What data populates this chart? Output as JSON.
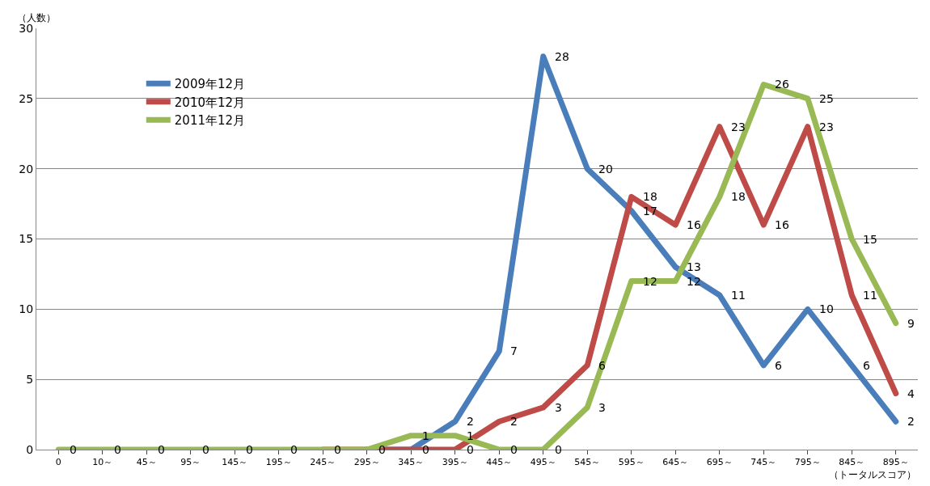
{
  "chart_data": {
    "type": "line",
    "ylabel": "（人数）",
    "xlabel": "（トータルスコア）",
    "categories": [
      "0",
      "10～",
      "45～",
      "95～",
      "145～",
      "195～",
      "245～",
      "295～",
      "345～",
      "395～",
      "445～",
      "495～",
      "545～",
      "595～",
      "645～",
      "695～",
      "745～",
      "795～",
      "845～",
      "895～"
    ],
    "series": [
      {
        "name": "2009年12月",
        "color": "#4a7ebb",
        "values": [
          null,
          null,
          null,
          null,
          null,
          null,
          null,
          0,
          0,
          2,
          7,
          28,
          20,
          17,
          13,
          11,
          6,
          10,
          6,
          2
        ],
        "value_labels": [
          null,
          null,
          null,
          null,
          null,
          null,
          null,
          null,
          null,
          "2",
          "7",
          "28",
          "20",
          "17",
          "13",
          "11",
          "6",
          "10",
          "6",
          "2"
        ]
      },
      {
        "name": "2010年12月",
        "color": "#be4b48",
        "values": [
          null,
          null,
          null,
          null,
          null,
          null,
          0,
          0,
          0,
          0,
          2,
          3,
          6,
          18,
          16,
          23,
          16,
          23,
          11,
          4
        ],
        "value_labels": [
          null,
          null,
          null,
          null,
          null,
          null,
          null,
          null,
          "0",
          "0",
          "2",
          "3",
          "6",
          "18",
          "16",
          "23",
          "16",
          "23",
          "11",
          "4"
        ]
      },
      {
        "name": "2011年12月",
        "color": "#98b954",
        "values": [
          0,
          0,
          0,
          0,
          0,
          0,
          0,
          0,
          1,
          1,
          0,
          0,
          3,
          12,
          12,
          18,
          26,
          25,
          15,
          9
        ],
        "value_labels": [
          "0",
          "0",
          "0",
          "0",
          "0",
          "0",
          "0",
          "0",
          "1",
          "1",
          "0",
          "0",
          "3",
          "12",
          "12",
          "18",
          "26",
          "25",
          "15",
          "9"
        ]
      }
    ],
    "ylim": [
      0,
      30
    ],
    "yticks": [
      0,
      5,
      10,
      15,
      20,
      25,
      30
    ],
    "grid": "y",
    "legend": "top left",
    "marker": "none",
    "line_style": "solid"
  }
}
